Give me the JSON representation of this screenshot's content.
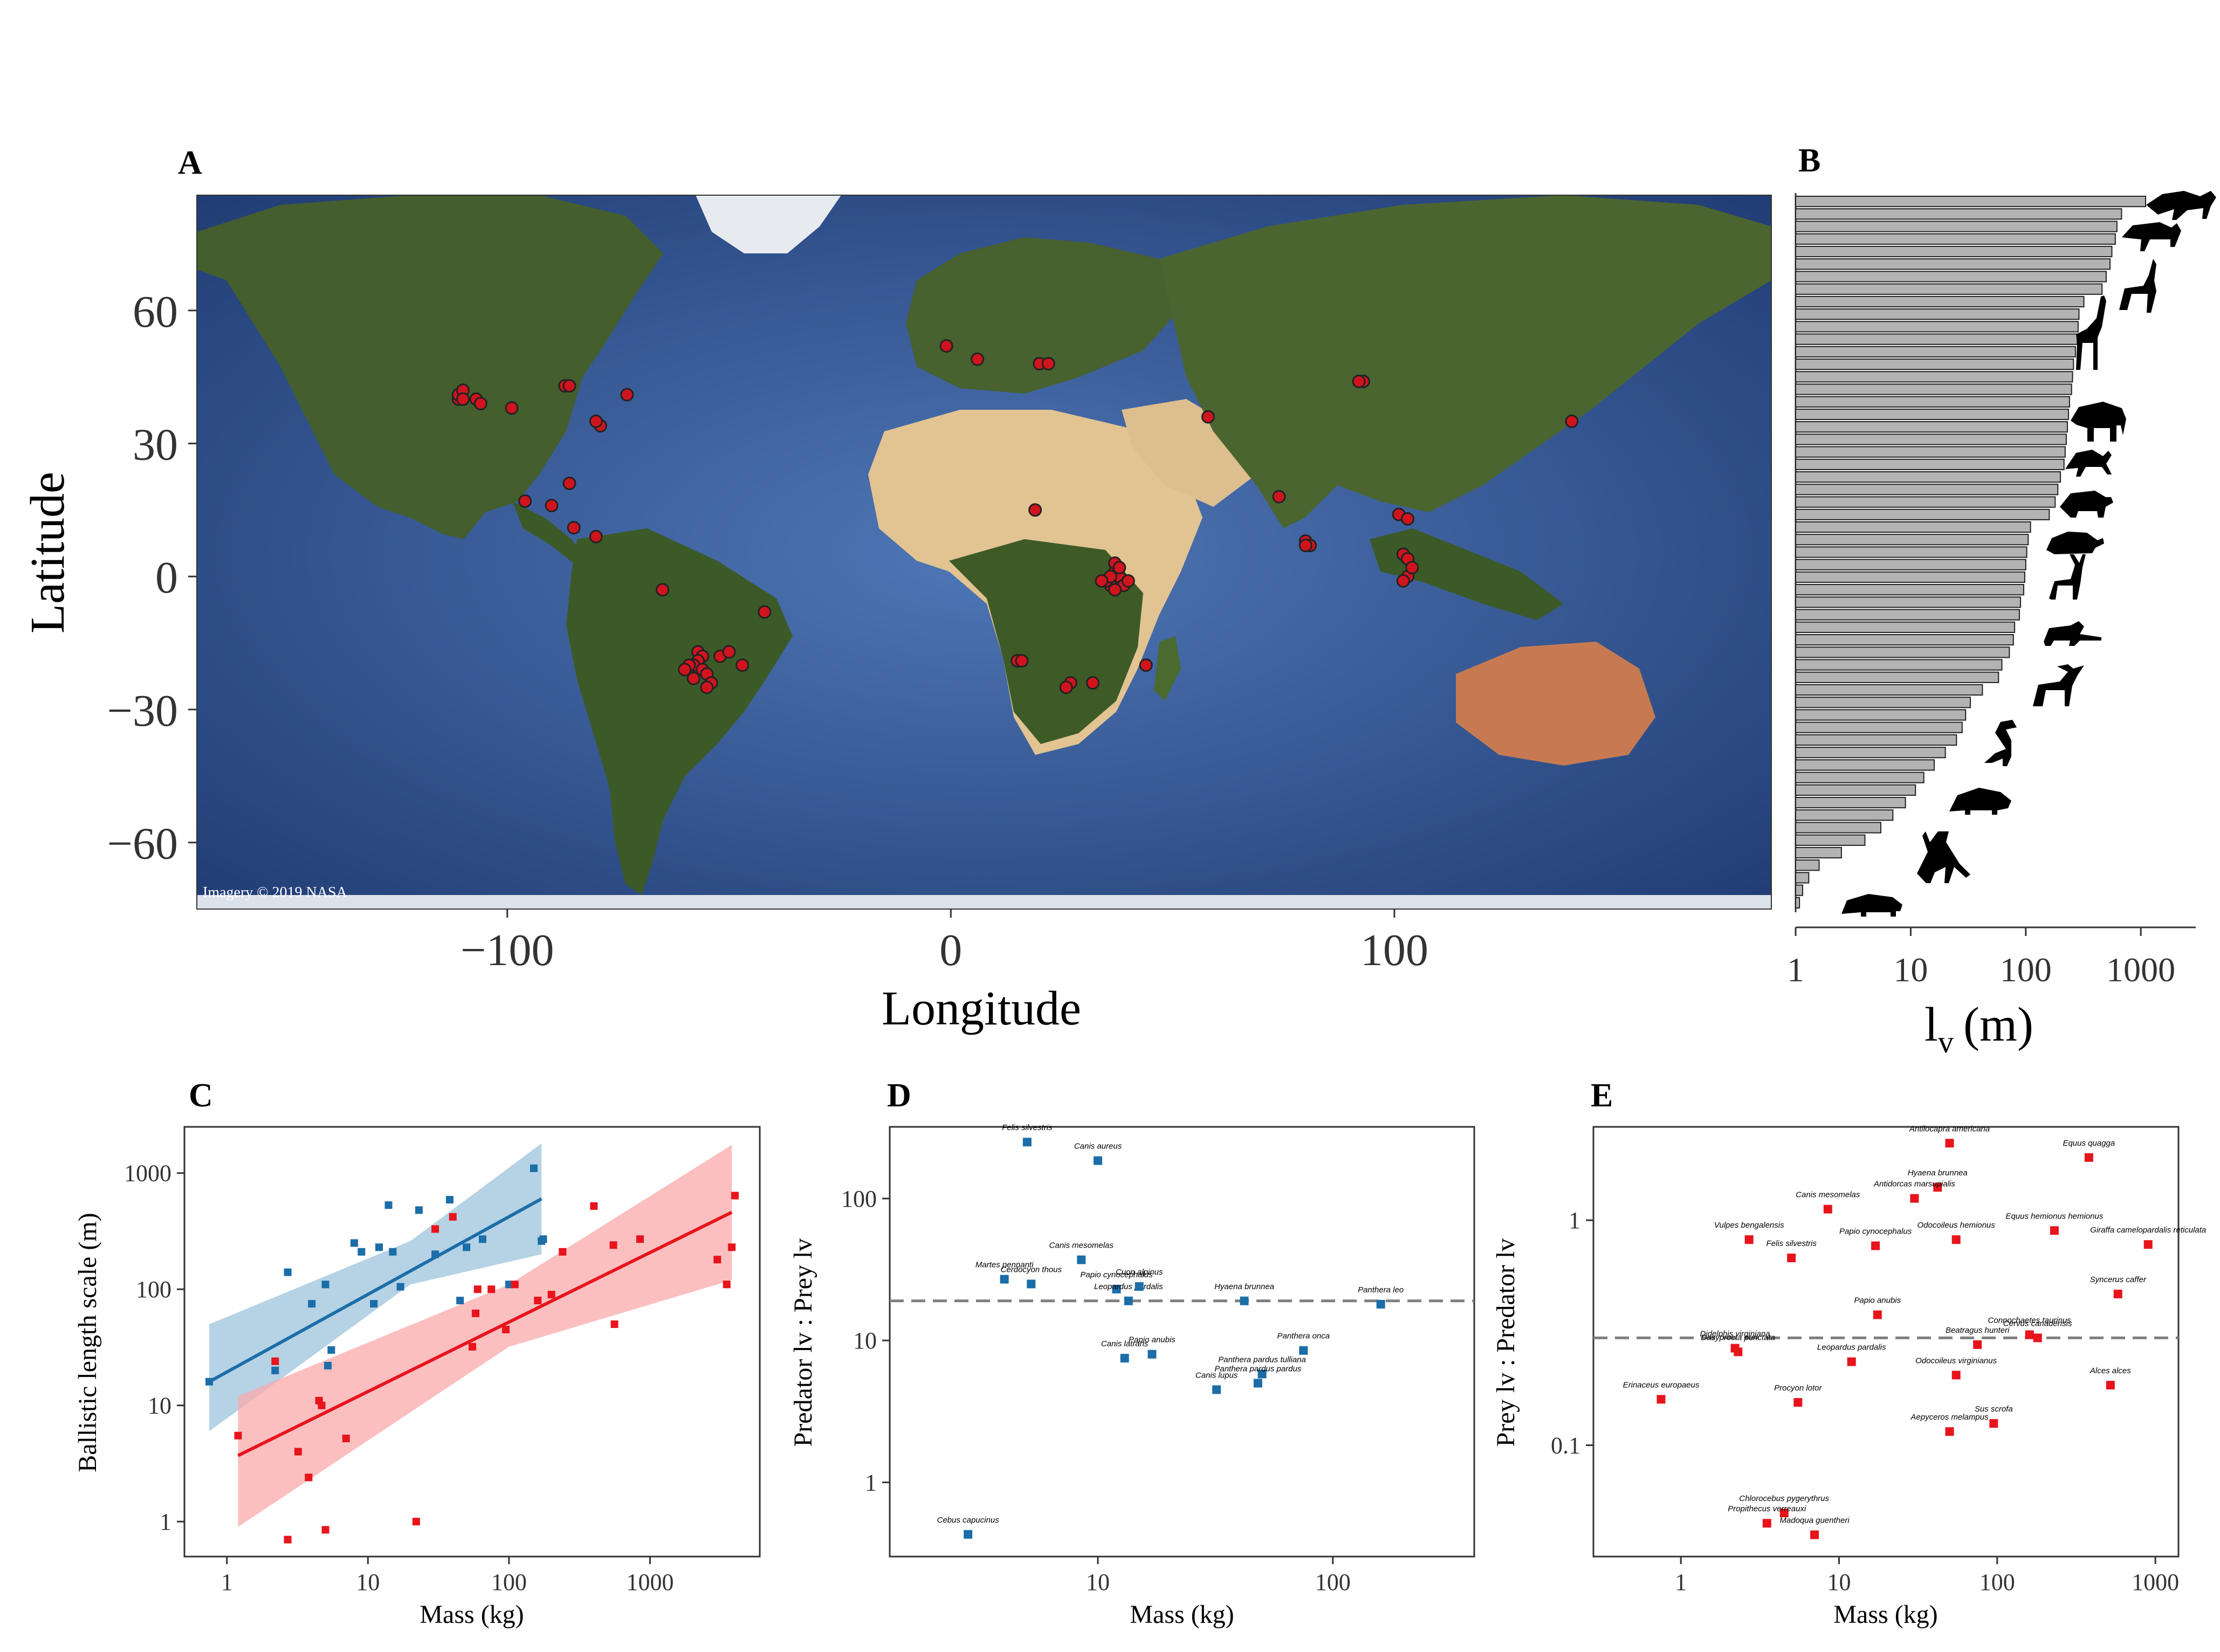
{
  "colors": {
    "ocean": "#2e4e8c",
    "ocean_light": "#4d74b3",
    "land_green": "#3f5a2c",
    "desert": "#e4c79a",
    "ice": "#f4f6f8",
    "marker_red": "#d0141e",
    "bar_fill": "#b3b3b3",
    "series_predator": "#1b6ea8",
    "series_prey": "#e8141c",
    "band_predator": "#9ec3dc",
    "band_prey": "#f9a9ab",
    "dashed": "#7f7f7f"
  },
  "panels": {
    "a": "A",
    "b": "B",
    "c": "C",
    "d": "D",
    "e": "E"
  },
  "map_credit": "Imagery © 2019 NASA",
  "chart_data": [
    {
      "id": "A",
      "type": "scatter",
      "title": "",
      "xlabel": "Longitude",
      "ylabel": "Latitude",
      "xlim": [
        -170,
        185
      ],
      "ylim": [
        -75,
        86
      ],
      "xticks": [
        -100,
        0,
        100
      ],
      "yticks": [
        60,
        30,
        0,
        -30,
        -60
      ],
      "xtick_labels": [
        "−100",
        "0",
        "100"
      ],
      "ytick_labels": [
        "60",
        "30",
        "0",
        "−30",
        "−60"
      ],
      "points": [
        [
          -111,
          40
        ],
        [
          -111,
          41
        ],
        [
          -110,
          42
        ],
        [
          -110,
          40
        ],
        [
          -107,
          40
        ],
        [
          -106,
          39
        ],
        [
          -99,
          38
        ],
        [
          -87,
          43
        ],
        [
          -86,
          43
        ],
        [
          -73,
          41
        ],
        [
          -79,
          34
        ],
        [
          -80,
          35
        ],
        [
          -90,
          16
        ],
        [
          -96,
          17
        ],
        [
          -86,
          21
        ],
        [
          -85,
          11
        ],
        [
          -80,
          9
        ],
        [
          -65,
          -3
        ],
        [
          -57,
          -17
        ],
        [
          -56,
          -18
        ],
        [
          -57,
          -19
        ],
        [
          -58,
          -20
        ],
        [
          -56,
          -21
        ],
        [
          -59,
          -20
        ],
        [
          -60,
          -21
        ],
        [
          -58,
          -23
        ],
        [
          -55,
          -22
        ],
        [
          -54,
          -24
        ],
        [
          -55,
          -25
        ],
        [
          -52,
          -18
        ],
        [
          -50,
          -17
        ],
        [
          -47,
          -20
        ],
        [
          -42,
          -8
        ],
        [
          -1,
          52
        ],
        [
          6,
          49
        ],
        [
          20,
          48
        ],
        [
          22,
          48
        ],
        [
          19,
          15
        ],
        [
          37,
          1
        ],
        [
          37,
          -1
        ],
        [
          36,
          -2
        ],
        [
          35,
          -1
        ],
        [
          38,
          0
        ],
        [
          39,
          -2
        ],
        [
          37,
          -3
        ],
        [
          40,
          -1
        ],
        [
          37,
          3
        ],
        [
          38,
          2
        ],
        [
          36,
          0
        ],
        [
          34,
          -1
        ],
        [
          15,
          -19
        ],
        [
          16,
          -19
        ],
        [
          27,
          -24
        ],
        [
          26,
          -25
        ],
        [
          32,
          -24
        ],
        [
          44,
          -20
        ],
        [
          58,
          36
        ],
        [
          74,
          18
        ],
        [
          80,
          8
        ],
        [
          81,
          7
        ],
        [
          80,
          7
        ],
        [
          93,
          44
        ],
        [
          92,
          44
        ],
        [
          101,
          14
        ],
        [
          103,
          13
        ],
        [
          102,
          5
        ],
        [
          103,
          4
        ],
        [
          103,
          0
        ],
        [
          102,
          -1
        ],
        [
          104,
          2
        ],
        [
          140,
          35
        ]
      ]
    },
    {
      "id": "B",
      "type": "bar",
      "orientation": "horizontal",
      "xlabel": "lv (m)",
      "xlabel_main": "l",
      "xlabel_sub": "v",
      "xlabel_unit": "(m)",
      "xscale": "log",
      "xlim": [
        1,
        3000
      ],
      "xticks": [
        1,
        10,
        100,
        1000
      ],
      "xtick_labels": [
        "1",
        "10",
        "100",
        "1000"
      ],
      "values": [
        1100,
        680,
        620,
        600,
        560,
        540,
        500,
        460,
        320,
        290,
        285,
        280,
        270,
        260,
        255,
        250,
        240,
        235,
        230,
        225,
        220,
        215,
        200,
        190,
        180,
        160,
        110,
        105,
        102,
        100,
        98,
        96,
        90,
        88,
        80,
        78,
        72,
        62,
        58,
        42,
        33,
        30,
        28,
        25,
        20,
        16,
        13,
        11,
        9,
        7,
        5.5,
        4,
        2.5,
        1.6,
        1.3,
        1.15,
        1.08
      ]
    },
    {
      "id": "C",
      "type": "scatter",
      "xlabel": "Mass (kg)",
      "ylabel": "Ballistic length scale (m)",
      "xscale": "log",
      "yscale": "log",
      "xlim": [
        0.5,
        6000
      ],
      "ylim": [
        0.5,
        2500
      ],
      "xticks": [
        1,
        10,
        100,
        1000
      ],
      "xtick_labels": [
        "1",
        "10",
        "100",
        "1000"
      ],
      "yticks": [
        1,
        10,
        100,
        1000
      ],
      "ytick_labels": [
        "1",
        "10",
        "100",
        "1000"
      ],
      "series": [
        {
          "name": "Predator",
          "fit": [
            [
              0.75,
              16
            ],
            [
              170,
              600
            ]
          ],
          "band_upper": [
            [
              0.75,
              50
            ],
            [
              20,
              260
            ],
            [
              170,
              1800
            ]
          ],
          "band_lower": [
            [
              0.75,
              6
            ],
            [
              20,
              110
            ],
            [
              170,
              200
            ]
          ],
          "points": [
            [
              0.75,
              16
            ],
            [
              2.2,
              20
            ],
            [
              2.7,
              140
            ],
            [
              4,
              75
            ],
            [
              5,
              110
            ],
            [
              5.2,
              22
            ],
            [
              5.5,
              30
            ],
            [
              8,
              250
            ],
            [
              9,
              210
            ],
            [
              11,
              75
            ],
            [
              12,
              230
            ],
            [
              14,
              530
            ],
            [
              15,
              210
            ],
            [
              17,
              105
            ],
            [
              23,
              480
            ],
            [
              30,
              200
            ],
            [
              38,
              590
            ],
            [
              45,
              80
            ],
            [
              50,
              230
            ],
            [
              65,
              270
            ],
            [
              100,
              110
            ],
            [
              150,
              1100
            ],
            [
              170,
              260
            ],
            [
              175,
              270
            ]
          ]
        },
        {
          "name": "Prey",
          "fit": [
            [
              1.2,
              3.7
            ],
            [
              3800,
              460
            ]
          ],
          "band_upper": [
            [
              1.2,
              12
            ],
            [
              100,
              110
            ],
            [
              3800,
              1750
            ]
          ],
          "band_lower": [
            [
              1.2,
              0.9
            ],
            [
              100,
              32
            ],
            [
              3800,
              120
            ]
          ],
          "points": [
            [
              1.2,
              5.5
            ],
            [
              2.2,
              24
            ],
            [
              2.7,
              0.7
            ],
            [
              3.2,
              4
            ],
            [
              3.8,
              2.4
            ],
            [
              4.5,
              11
            ],
            [
              4.7,
              10
            ],
            [
              5,
              0.85
            ],
            [
              7,
              5.2
            ],
            [
              22,
              1
            ],
            [
              30,
              330
            ],
            [
              40,
              420
            ],
            [
              55,
              32
            ],
            [
              58,
              62
            ],
            [
              60,
              100
            ],
            [
              75,
              100
            ],
            [
              95,
              45
            ],
            [
              110,
              110
            ],
            [
              160,
              80
            ],
            [
              200,
              90
            ],
            [
              240,
              210
            ],
            [
              400,
              520
            ],
            [
              550,
              240
            ],
            [
              560,
              50
            ],
            [
              850,
              270
            ],
            [
              3000,
              180
            ],
            [
              3500,
              110
            ],
            [
              3800,
              230
            ],
            [
              4000,
              640
            ]
          ]
        }
      ]
    },
    {
      "id": "D",
      "type": "scatter",
      "xlabel": "Mass (kg)",
      "ylabel": "Predator lv : Prey lv",
      "xscale": "log",
      "yscale": "log",
      "xlim": [
        1.3,
        400
      ],
      "ylim": [
        0.3,
        320
      ],
      "xticks": [
        10,
        100
      ],
      "xtick_labels": [
        "10",
        "100"
      ],
      "yticks": [
        1,
        10,
        100
      ],
      "ytick_labels": [
        "1",
        "10",
        "100"
      ],
      "reference_line": 19,
      "points": [
        {
          "name": "Felis silvestris",
          "x": 5,
          "y": 250
        },
        {
          "name": "Canis aureus",
          "x": 10,
          "y": 185
        },
        {
          "name": "Canis mesomelas",
          "x": 8.5,
          "y": 37
        },
        {
          "name": "Martes pennanti",
          "x": 4,
          "y": 27
        },
        {
          "name": "Cerdocyon thous",
          "x": 5.2,
          "y": 25
        },
        {
          "name": "Papio cynocephalus",
          "x": 12,
          "y": 23
        },
        {
          "name": "Leopardus pardalis",
          "x": 13.5,
          "y": 19
        },
        {
          "name": "Cuon alpinus",
          "x": 15,
          "y": 24
        },
        {
          "name": "Hyaena brunnea",
          "x": 42,
          "y": 19
        },
        {
          "name": "Panthera leo",
          "x": 160,
          "y": 18
        },
        {
          "name": "Papio anubis",
          "x": 17,
          "y": 8
        },
        {
          "name": "Canis latrans",
          "x": 13,
          "y": 7.5
        },
        {
          "name": "Panthera onca",
          "x": 75,
          "y": 8.5
        },
        {
          "name": "Panthera pardus tulliana",
          "x": 50,
          "y": 5.8
        },
        {
          "name": "Panthera pardus pardus",
          "x": 48,
          "y": 5
        },
        {
          "name": "Canis lupus",
          "x": 32,
          "y": 4.5
        },
        {
          "name": "Cebus capucinus",
          "x": 2.8,
          "y": 0.43
        }
      ]
    },
    {
      "id": "E",
      "type": "scatter",
      "xlabel": "Mass (kg)",
      "ylabel": "Prey lv : Predator lv",
      "xscale": "log",
      "yscale": "log",
      "xlim": [
        0.28,
        1400
      ],
      "ylim": [
        0.032,
        2.6
      ],
      "xticks": [
        1,
        10,
        100,
        1000
      ],
      "xtick_labels": [
        "1",
        "10",
        "100",
        "1000"
      ],
      "yticks": [
        0.1,
        1
      ],
      "ytick_labels": [
        "0.1",
        "1"
      ],
      "reference_line": 0.3,
      "points": [
        {
          "name": "Antilocapra americana",
          "x": 50,
          "y": 2.2
        },
        {
          "name": "Equus quagga",
          "x": 380,
          "y": 1.9
        },
        {
          "name": "Hyaena brunnea",
          "x": 42,
          "y": 1.4
        },
        {
          "name": "Antidorcas marsupialis",
          "x": 30,
          "y": 1.25
        },
        {
          "name": "Canis mesomelas",
          "x": 8.5,
          "y": 1.12
        },
        {
          "name": "Equus hemionus hemionus",
          "x": 230,
          "y": 0.9
        },
        {
          "name": "Giraffa camelopardalis reticulata",
          "x": 900,
          "y": 0.78
        },
        {
          "name": "Odocoileus hemionus",
          "x": 55,
          "y": 0.82
        },
        {
          "name": "Papio cynocephalus",
          "x": 17,
          "y": 0.77
        },
        {
          "name": "Vulpes bengalensis",
          "x": 2.7,
          "y": 0.82
        },
        {
          "name": "Felis silvestris",
          "x": 5,
          "y": 0.68
        },
        {
          "name": "Syncerus caffer",
          "x": 580,
          "y": 0.47
        },
        {
          "name": "Papio anubis",
          "x": 17.5,
          "y": 0.38
        },
        {
          "name": "Connochaetes taurinus",
          "x": 160,
          "y": 0.31
        },
        {
          "name": "Cervus canadensis",
          "x": 180,
          "y": 0.3
        },
        {
          "name": "Beatragus hunteri",
          "x": 75,
          "y": 0.28
        },
        {
          "name": "Didelphis virginiana",
          "x": 2.2,
          "y": 0.27
        },
        {
          "name": "Dasyprocta punctata",
          "x": 2.3,
          "y": 0.26
        },
        {
          "name": "Leopardus pardalis",
          "x": 12,
          "y": 0.235
        },
        {
          "name": "Odocoileus virginianus",
          "x": 55,
          "y": 0.205
        },
        {
          "name": "Alces alces",
          "x": 520,
          "y": 0.185
        },
        {
          "name": "Erinaceus europaeus",
          "x": 0.75,
          "y": 0.16
        },
        {
          "name": "Procyon lotor",
          "x": 5.5,
          "y": 0.155
        },
        {
          "name": "Sus scrofa",
          "x": 95,
          "y": 0.125
        },
        {
          "name": "Aepyceros melampus",
          "x": 50,
          "y": 0.115
        },
        {
          "name": "Chlorocebus pygerythrus",
          "x": 4.5,
          "y": 0.05
        },
        {
          "name": "Propithecus verreauxi",
          "x": 3.5,
          "y": 0.045
        },
        {
          "name": "Madoqua guentheri",
          "x": 7,
          "y": 0.04
        }
      ]
    }
  ]
}
